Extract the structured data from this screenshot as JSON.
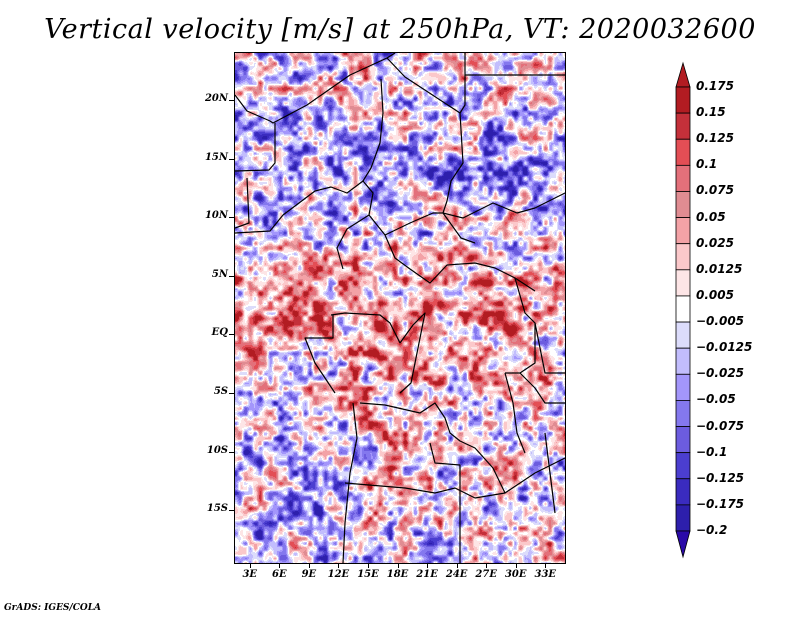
{
  "title": "Vertical velocity [m/s] at 250hPa, VT: 2020032600",
  "credit": "GrADS: IGES/COLA",
  "map": {
    "variable": "Vertical velocity",
    "units": "m/s",
    "level": "250hPa",
    "valid_time": "2020032600",
    "lon_range": [
      1.5,
      35
    ],
    "lat_range": [
      -19.5,
      24
    ],
    "lat_ticks": [
      {
        "value": 20,
        "label": "20N"
      },
      {
        "value": 15,
        "label": "15N"
      },
      {
        "value": 10,
        "label": "10N"
      },
      {
        "value": 5,
        "label": "5N"
      },
      {
        "value": 0,
        "label": "EQ"
      },
      {
        "value": -5,
        "label": "5S"
      },
      {
        "value": -10,
        "label": "10S"
      },
      {
        "value": -15,
        "label": "15S"
      }
    ],
    "lon_ticks": [
      {
        "value": 3,
        "label": "3E"
      },
      {
        "value": 6,
        "label": "6E"
      },
      {
        "value": 9,
        "label": "9E"
      },
      {
        "value": 12,
        "label": "12E"
      },
      {
        "value": 15,
        "label": "15E"
      },
      {
        "value": 18,
        "label": "18E"
      },
      {
        "value": 21,
        "label": "21E"
      },
      {
        "value": 24,
        "label": "24E"
      },
      {
        "value": 27,
        "label": "27E"
      },
      {
        "value": 30,
        "label": "30E"
      },
      {
        "value": 33,
        "label": "33E"
      }
    ]
  },
  "colorbar": {
    "levels": [
      {
        "label": "0.175",
        "color": "#b21c22"
      },
      {
        "label": "0.15",
        "color": "#c4303a"
      },
      {
        "label": "0.125",
        "color": "#e34e55"
      },
      {
        "label": "0.1",
        "color": "#e3707a"
      },
      {
        "label": "0.075",
        "color": "#e08c92"
      },
      {
        "label": "0.05",
        "color": "#f3a2a6"
      },
      {
        "label": "0.025",
        "color": "#fbc8ca"
      },
      {
        "label": "0.0125",
        "color": "#fde5e6"
      },
      {
        "label": "0.005",
        "color": "#ffffff"
      },
      {
        "label": "−0.005",
        "color": "#dcdcfb"
      },
      {
        "label": "−0.0125",
        "color": "#c2bdfd"
      },
      {
        "label": "−0.025",
        "color": "#a396fb"
      },
      {
        "label": "−0.05",
        "color": "#8478ee"
      },
      {
        "label": "−0.075",
        "color": "#6c5cdf"
      },
      {
        "label": "−0.1",
        "color": "#4b3ed0"
      },
      {
        "label": "−0.125",
        "color": "#3a2bbf"
      },
      {
        "label": "−0.175",
        "color": "#2d1fac"
      },
      {
        "label": "−0.2",
        "color": "#2a0aa8"
      }
    ],
    "top_arrow_color": "#b21c22",
    "bottom_arrow_color": "#2a0aa8",
    "segment_colors": [
      "#b21c22",
      "#c4303a",
      "#e34e55",
      "#e3707a",
      "#e08c92",
      "#f3a2a6",
      "#fbc8ca",
      "#fde5e6",
      "#ffffff",
      "#dcdcfb",
      "#c2bdfd",
      "#a396fb",
      "#8478ee",
      "#6c5cdf",
      "#4b3ed0",
      "#3a2bbf",
      "#2d1fac"
    ]
  }
}
